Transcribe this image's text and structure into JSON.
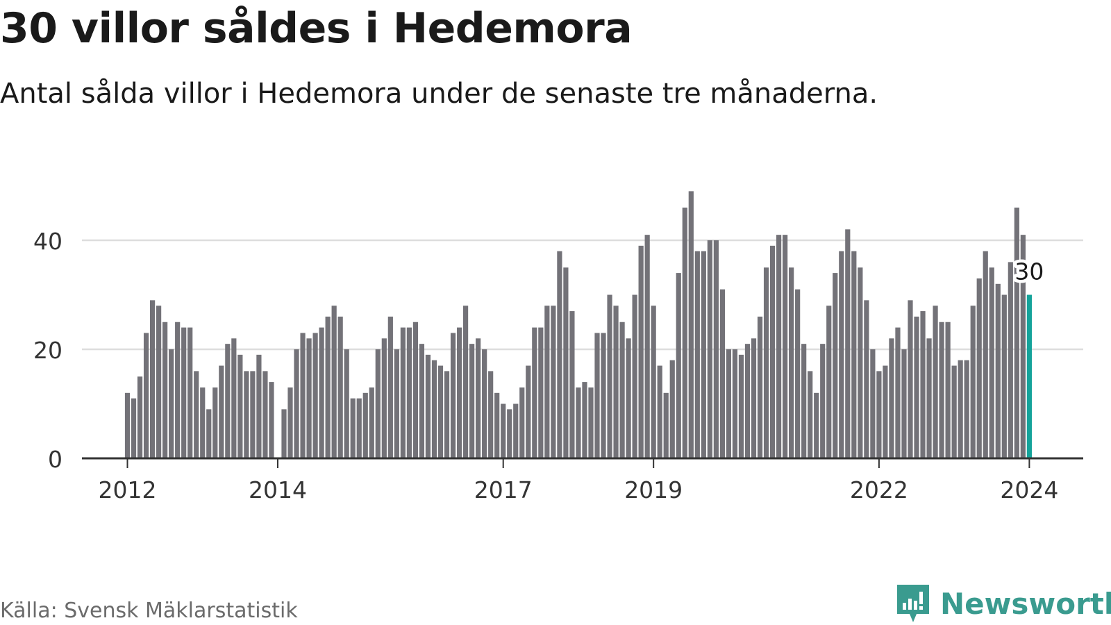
{
  "header": {
    "title": "30 villor såldes i Hedemora",
    "subtitle": "Antal sålda villor i Hedemora under de senaste tre månaderna."
  },
  "footer": {
    "source": "Källa: Svensk Mäklarstatistik",
    "brand": "Newsworthy"
  },
  "colors": {
    "bar": "#737278",
    "highlight": "#14a39a",
    "grid": "#dddddd",
    "axis": "#333333",
    "brand": "#3a9b8f"
  },
  "chart_data": {
    "type": "bar",
    "title": "30 villor såldes i Hedemora",
    "subtitle": "Antal sålda villor i Hedemora under de senaste tre månaderna.",
    "xlabel": "",
    "ylabel": "",
    "ylim": [
      0,
      50
    ],
    "yticks": [
      0,
      20,
      40
    ],
    "grid": true,
    "start": "2012-01",
    "xticks": [
      {
        "label": "2012",
        "index": 0
      },
      {
        "label": "2014",
        "index": 24
      },
      {
        "label": "2017",
        "index": 60
      },
      {
        "label": "2019",
        "index": 84
      },
      {
        "label": "2022",
        "index": 120
      },
      {
        "label": "2024",
        "index": 144
      }
    ],
    "highlight": {
      "index": 144,
      "value": 30,
      "label": "30"
    },
    "values": [
      12,
      11,
      15,
      23,
      29,
      28,
      25,
      20,
      25,
      24,
      24,
      16,
      13,
      9,
      13,
      17,
      21,
      22,
      19,
      16,
      16,
      19,
      16,
      14,
      null,
      9,
      13,
      20,
      23,
      22,
      23,
      24,
      26,
      28,
      26,
      20,
      11,
      11,
      12,
      13,
      20,
      22,
      26,
      20,
      24,
      24,
      25,
      21,
      19,
      18,
      17,
      16,
      23,
      24,
      28,
      21,
      22,
      20,
      16,
      12,
      10,
      9,
      10,
      13,
      17,
      24,
      24,
      28,
      28,
      38,
      35,
      27,
      13,
      14,
      13,
      23,
      23,
      30,
      28,
      25,
      22,
      30,
      39,
      41,
      28,
      17,
      12,
      18,
      34,
      46,
      49,
      38,
      38,
      40,
      40,
      31,
      20,
      20,
      19,
      21,
      22,
      26,
      35,
      39,
      41,
      41,
      35,
      31,
      21,
      16,
      12,
      21,
      28,
      34,
      38,
      42,
      38,
      35,
      29,
      20,
      16,
      17,
      22,
      24,
      20,
      29,
      26,
      27,
      22,
      28,
      25,
      25,
      17,
      18,
      18,
      28,
      33,
      38,
      35,
      32,
      30,
      36,
      46,
      41,
      30
    ]
  }
}
